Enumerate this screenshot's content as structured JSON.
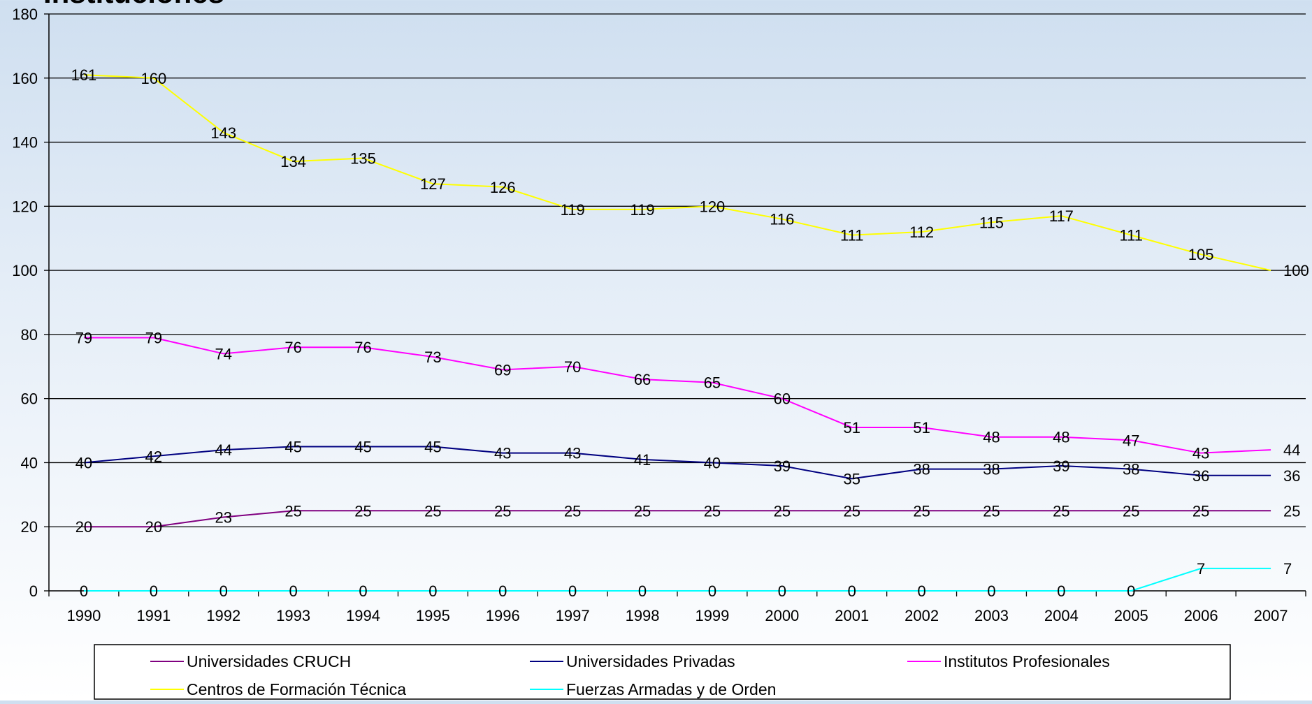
{
  "chart_data": {
    "type": "line",
    "title": "Instituciones",
    "xlabel": "",
    "ylabel": "",
    "ylim": [
      0,
      180
    ],
    "yticks": [
      0,
      20,
      40,
      60,
      80,
      100,
      120,
      140,
      160,
      180
    ],
    "categories": [
      "1990",
      "1991",
      "1992",
      "1993",
      "1994",
      "1995",
      "1996",
      "1997",
      "1998",
      "1999",
      "2000",
      "2001",
      "2002",
      "2003",
      "2004",
      "2005",
      "2006",
      "2007"
    ],
    "grid": true,
    "legend_position": "bottom",
    "series": [
      {
        "name": "Universidades CRUCH",
        "color": "#800080",
        "values": [
          20,
          20,
          23,
          25,
          25,
          25,
          25,
          25,
          25,
          25,
          25,
          25,
          25,
          25,
          25,
          25,
          25,
          25
        ]
      },
      {
        "name": "Universidades Privadas",
        "color": "#000080",
        "values": [
          40,
          42,
          44,
          45,
          45,
          45,
          43,
          43,
          41,
          40,
          39,
          35,
          38,
          38,
          39,
          38,
          36,
          36
        ]
      },
      {
        "name": "Institutos Profesionales",
        "color": "#ff00ff",
        "values": [
          79,
          79,
          74,
          76,
          76,
          73,
          69,
          70,
          66,
          65,
          60,
          51,
          51,
          48,
          48,
          47,
          43,
          44
        ]
      },
      {
        "name": "Centros de Formación Técnica",
        "color": "#ffff00",
        "values": [
          161,
          160,
          143,
          134,
          135,
          127,
          126,
          119,
          119,
          120,
          116,
          111,
          112,
          115,
          117,
          111,
          105,
          100
        ]
      },
      {
        "name": "Fuerzas Armadas y de Orden",
        "color": "#00ffff",
        "values": [
          0,
          0,
          0,
          0,
          0,
          0,
          0,
          0,
          0,
          0,
          0,
          0,
          0,
          0,
          0,
          0,
          7,
          7
        ]
      }
    ]
  }
}
